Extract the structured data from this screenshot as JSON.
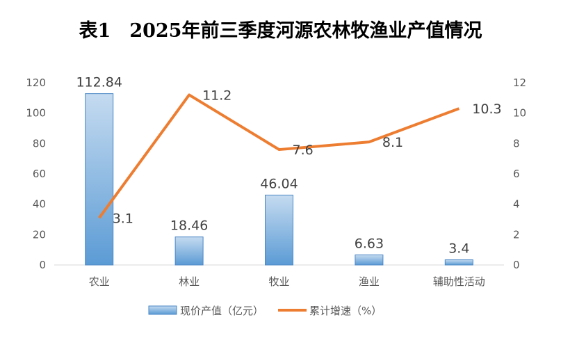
{
  "chart_data": {
    "type": "bar",
    "title": "表1　2025年前三季度河源农林牧渔业产值情况",
    "categories": [
      "农业",
      "林业",
      "牧业",
      "渔业",
      "辅助性活动"
    ],
    "series": [
      {
        "name": "现价产值（亿元）",
        "type": "bar",
        "axis": "left",
        "values": [
          112.84,
          18.46,
          46.04,
          6.63,
          3.4
        ],
        "color": "#5b9bd5"
      },
      {
        "name": "累计增速（%）",
        "type": "line",
        "axis": "right",
        "values": [
          3.1,
          11.2,
          7.6,
          8.1,
          10.3
        ],
        "color": "#ed7d31"
      }
    ],
    "ylim_left": [
      0,
      120
    ],
    "ylim_right": [
      0,
      12
    ],
    "yticks_left": [
      "0",
      "20",
      "40",
      "60",
      "80",
      "100",
      "120"
    ],
    "yticks_right": [
      "0",
      "2",
      "4",
      "6",
      "8",
      "10",
      "12"
    ],
    "bar_labels": [
      "112.84",
      "18.46",
      "46.04",
      "6.63",
      "3.4"
    ],
    "line_labels": [
      "3.1",
      "11.2",
      "7.6",
      "8.1",
      "10.3"
    ],
    "grid": false,
    "legend": "bottom"
  }
}
